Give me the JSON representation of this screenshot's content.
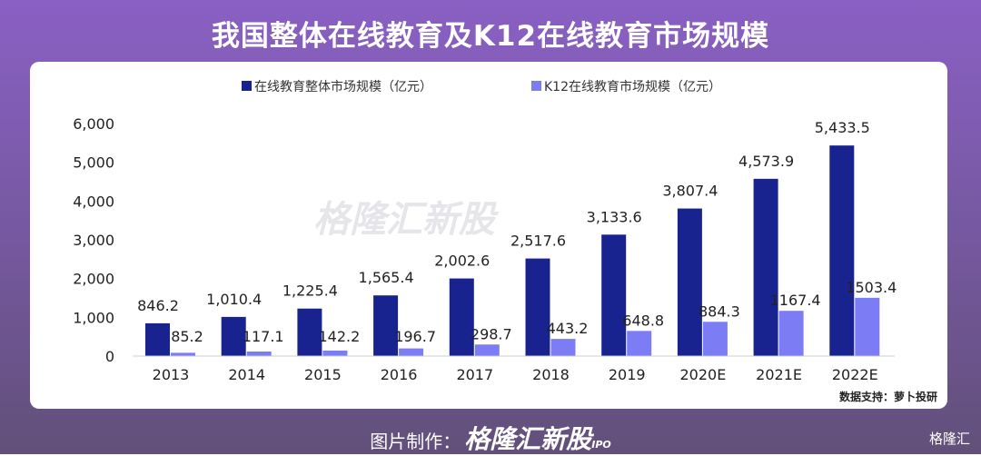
{
  "title": "我国整体在线教育及K12在线教育市场规模",
  "footer": {
    "label": "图片制作：",
    "brand": "格隆汇新股",
    "ipo": "IPO",
    "logo": "格隆汇"
  },
  "source": "数据支持：萝卜投研",
  "watermark": "格隆汇新股",
  "colors": {
    "overall": "#18238f",
    "k12": "#7c7cf5"
  },
  "chart_data": {
    "type": "bar",
    "title": "我国整体在线教育及K12在线教育市场规模",
    "categories": [
      "2013",
      "2014",
      "2015",
      "2016",
      "2017",
      "2018",
      "2019",
      "2020E",
      "2021E",
      "2022E"
    ],
    "series": [
      {
        "name": "在线教育整体市场规模（亿元）",
        "values": [
          846.2,
          1010.4,
          1225.4,
          1565.4,
          2002.6,
          2517.6,
          3133.6,
          3807.4,
          4573.9,
          5433.5
        ],
        "labels": [
          "846.2",
          "1,010.4",
          "1,225.4",
          "1,565.4",
          "2,002.6",
          "2,517.6",
          "3,133.6",
          "3,807.4",
          "4,573.9",
          "5,433.5"
        ]
      },
      {
        "name": "K12在线教育市场规模（亿元）",
        "values": [
          85.2,
          117.1,
          142.2,
          196.7,
          298.7,
          443.2,
          648.8,
          884.3,
          1167.4,
          1503.4
        ],
        "labels": [
          "85.2",
          "117.1",
          "142.2",
          "196.7",
          "298.7",
          "443.2",
          "648.8",
          "884.3",
          "1167.4",
          "1503.4"
        ]
      }
    ],
    "yticks": [
      "0",
      "1,000",
      "2,000",
      "3,000",
      "4,000",
      "5,000",
      "6,000"
    ],
    "ylim": [
      0,
      6000
    ],
    "legend": "top",
    "grid": false
  }
}
